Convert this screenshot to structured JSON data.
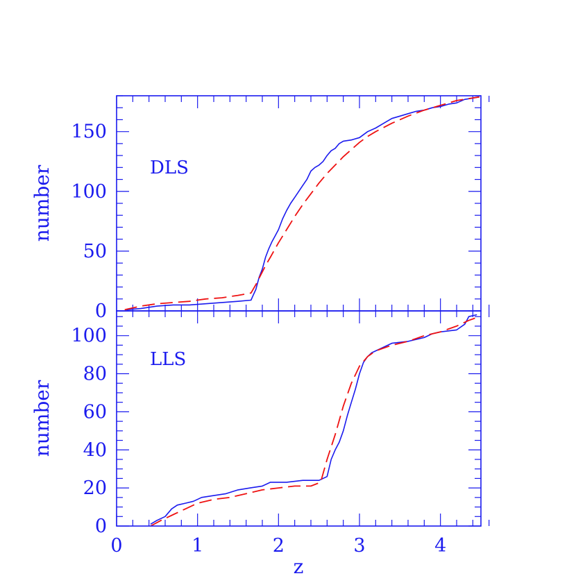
{
  "chart_data": [
    {
      "panel": "top",
      "type": "line",
      "label": "DLS",
      "xlabel": "",
      "ylabel": "number",
      "xlim": [
        0,
        4.5
      ],
      "ylim": [
        0,
        180
      ],
      "y_major_ticks": [
        0,
        50,
        100,
        150
      ],
      "y_minor_step": 10,
      "x_major_ticks": [
        1,
        2,
        3,
        4
      ],
      "x_minor_step": 0.2,
      "grid": false,
      "colors": {
        "observed": "#1a1aee",
        "model": "#ee1111",
        "axes": "#1a1aee"
      },
      "series": [
        {
          "style": "solid",
          "x": [
            0.12,
            0.3,
            0.5,
            0.7,
            0.9,
            1.1,
            1.3,
            1.5,
            1.66,
            1.68,
            1.72,
            1.76,
            1.8,
            1.84,
            1.88,
            1.92,
            1.96,
            2.0,
            2.05,
            2.1,
            2.15,
            2.2,
            2.25,
            2.3,
            2.35,
            2.4,
            2.45,
            2.5,
            2.55,
            2.6,
            2.65,
            2.7,
            2.75,
            2.8,
            2.9,
            3.0,
            3.1,
            3.2,
            3.3,
            3.4,
            3.5,
            3.6,
            3.7,
            3.8,
            3.9,
            4.0,
            4.1,
            4.2,
            4.3,
            4.4,
            4.48
          ],
          "y": [
            1,
            2,
            4,
            5,
            5,
            6,
            7,
            8,
            9,
            12,
            18,
            28,
            35,
            45,
            52,
            58,
            63,
            68,
            77,
            84,
            90,
            95,
            100,
            105,
            110,
            117,
            120,
            122,
            125,
            130,
            134,
            136,
            140,
            142,
            143,
            145,
            150,
            153,
            157,
            161,
            163,
            165,
            167,
            168,
            170,
            171,
            173,
            174,
            177,
            178,
            179
          ]
        },
        {
          "style": "dashed",
          "x": [
            0.1,
            0.3,
            0.5,
            0.7,
            0.9,
            1.1,
            1.3,
            1.5,
            1.66,
            1.72,
            1.78,
            1.84,
            1.9,
            2.0,
            2.1,
            2.2,
            2.3,
            2.4,
            2.5,
            2.6,
            2.7,
            2.8,
            2.9,
            3.0,
            3.1,
            3.2,
            3.4,
            3.6,
            3.8,
            4.0,
            4.2,
            4.48
          ],
          "y": [
            1,
            4,
            6,
            7,
            8,
            10,
            11,
            13,
            15,
            22,
            30,
            38,
            45,
            57,
            68,
            79,
            89,
            98,
            107,
            115,
            122,
            129,
            135,
            141,
            146,
            150,
            157,
            163,
            168,
            172,
            176,
            179
          ]
        }
      ]
    },
    {
      "panel": "bottom",
      "type": "line",
      "label": "LLS",
      "xlabel": "z",
      "ylabel": "number",
      "xlim": [
        0,
        4.5
      ],
      "ylim": [
        0,
        113
      ],
      "y_major_ticks": [
        0,
        20,
        40,
        60,
        80,
        100
      ],
      "y_minor_step": 5,
      "x_major_ticks": [
        0,
        1,
        2,
        3,
        4
      ],
      "x_minor_step": 0.2,
      "grid": false,
      "colors": {
        "observed": "#1a1aee",
        "model": "#ee1111",
        "axes": "#1a1aee"
      },
      "series": [
        {
          "style": "solid",
          "x": [
            0.42,
            0.5,
            0.6,
            0.68,
            0.75,
            0.85,
            0.95,
            1.05,
            1.2,
            1.35,
            1.5,
            1.65,
            1.8,
            1.9,
            2.1,
            2.3,
            2.5,
            2.6,
            2.65,
            2.7,
            2.75,
            2.8,
            2.85,
            2.9,
            2.95,
            3.0,
            3.05,
            3.1,
            3.15,
            3.25,
            3.4,
            3.6,
            3.8,
            3.9,
            4.0,
            4.2,
            4.3,
            4.35,
            4.45
          ],
          "y": [
            1,
            3,
            5,
            9,
            11,
            12,
            13,
            15,
            16,
            17,
            19,
            20,
            21,
            23,
            23,
            24,
            24,
            26,
            35,
            40,
            44,
            50,
            58,
            65,
            72,
            80,
            86,
            89,
            91,
            93,
            96,
            97,
            99,
            101,
            102,
            103,
            106,
            110,
            111
          ]
        },
        {
          "style": "dashed",
          "x": [
            0.42,
            0.55,
            0.7,
            0.85,
            1.0,
            1.2,
            1.4,
            1.6,
            1.8,
            2.0,
            2.2,
            2.4,
            2.52,
            2.6,
            2.7,
            2.8,
            2.9,
            3.0,
            3.1,
            3.2,
            3.4,
            3.6,
            3.8,
            4.0,
            4.2,
            4.35,
            4.48
          ],
          "y": [
            0,
            3,
            6,
            9,
            12,
            14,
            15,
            17,
            19,
            20,
            21,
            21,
            23,
            35,
            48,
            63,
            75,
            84,
            89,
            92,
            95,
            97,
            100,
            102,
            105,
            108,
            110
          ]
        }
      ]
    }
  ]
}
